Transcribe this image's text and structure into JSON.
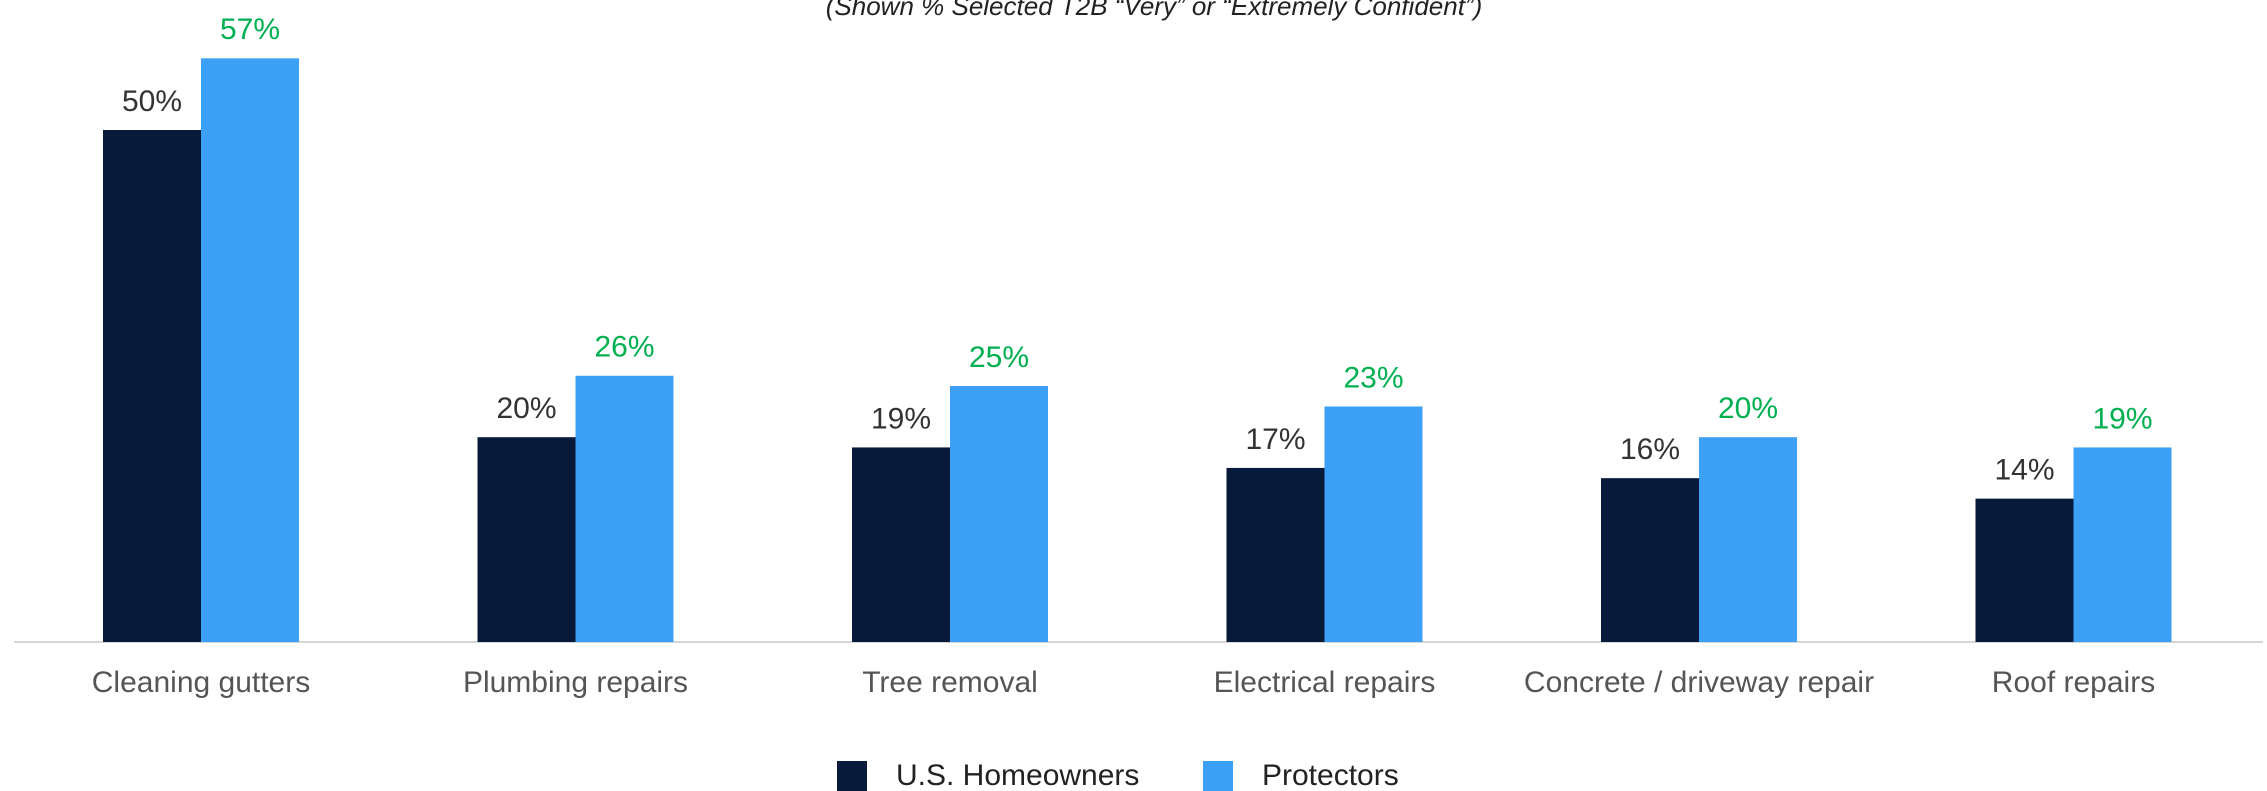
{
  "chart_data": {
    "type": "bar",
    "subtitle": "(Shown % Selected T2B “Very” or “Extremely Confident”)",
    "categories": [
      "Cleaning gutters",
      "Plumbing repairs",
      "Tree removal",
      "Electrical repairs",
      "Concrete / driveway repair",
      "Roof repairs"
    ],
    "series": [
      {
        "name": "U.S. Homeowners",
        "color": "#081a3a",
        "label_color": "#333333",
        "values": [
          50,
          20,
          19,
          17,
          16,
          14
        ],
        "value_labels": [
          "50%",
          "20%",
          "19%",
          "17%",
          "16%",
          "14%"
        ]
      },
      {
        "name": "Protectors",
        "color": "#3da0f7",
        "label_color": "#00b050",
        "values": [
          57,
          26,
          25,
          23,
          20,
          19
        ],
        "value_labels": [
          "57%",
          "26%",
          "25%",
          "23%",
          "20%",
          "19%"
        ]
      }
    ],
    "ylim": [
      0,
      60
    ],
    "legend": "bottom"
  }
}
